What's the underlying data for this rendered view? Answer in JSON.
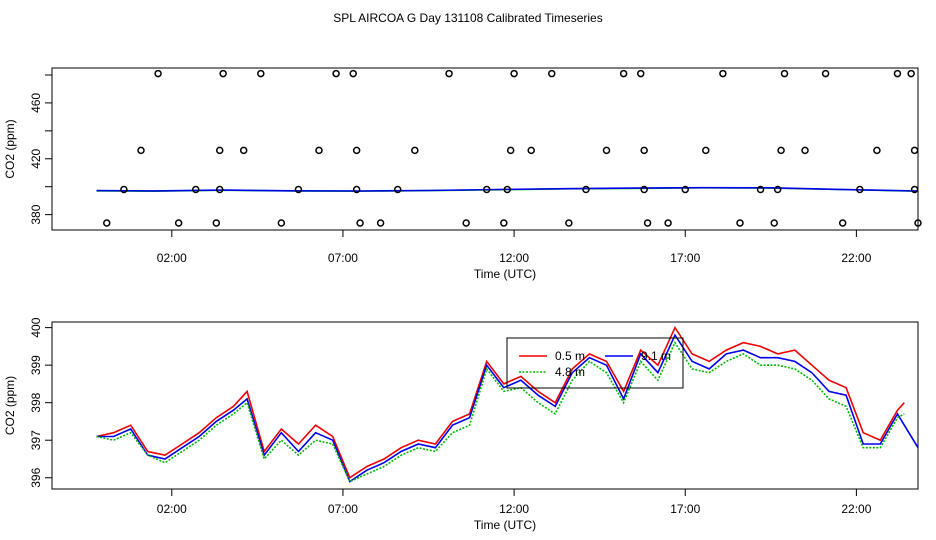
{
  "title": "SPL AIRCOA G  Day 131108  Calibrated Timeseries",
  "chart_data": [
    {
      "type": "scatter",
      "xlabel": "Time (UTC)",
      "ylabel": "CO2 (ppm)",
      "xlim": [
        -1.5,
        23.8
      ],
      "ylim": [
        369,
        485
      ],
      "x_ticks": [
        2,
        7,
        12,
        17,
        22
      ],
      "x_tick_labels": [
        "02:00",
        "07:00",
        "12:00",
        "17:00",
        "22:00"
      ],
      "y_ticks": [
        380,
        420,
        460
      ],
      "y_tick_labels": [
        "380",
        "420",
        "460"
      ],
      "points": [
        [
          0.1,
          374
        ],
        [
          0.6,
          398
        ],
        [
          1.1,
          426
        ],
        [
          1.6,
          481
        ],
        [
          2.2,
          374
        ],
        [
          2.7,
          398
        ],
        [
          3.3,
          374
        ],
        [
          3.4,
          398
        ],
        [
          3.4,
          426
        ],
        [
          3.5,
          481
        ],
        [
          4.1,
          426
        ],
        [
          4.6,
          481
        ],
        [
          5.2,
          374
        ],
        [
          5.7,
          398
        ],
        [
          6.3,
          426
        ],
        [
          6.8,
          481
        ],
        [
          7.3,
          481
        ],
        [
          7.4,
          426
        ],
        [
          7.4,
          398
        ],
        [
          7.5,
          374
        ],
        [
          8.1,
          374
        ],
        [
          8.6,
          398
        ],
        [
          9.1,
          426
        ],
        [
          10.1,
          481
        ],
        [
          10.6,
          374
        ],
        [
          11.2,
          398
        ],
        [
          11.7,
          374
        ],
        [
          11.8,
          398
        ],
        [
          11.9,
          426
        ],
        [
          12.0,
          481
        ],
        [
          12.5,
          426
        ],
        [
          13.1,
          481
        ],
        [
          13.6,
          374
        ],
        [
          14.1,
          398
        ],
        [
          14.7,
          426
        ],
        [
          15.2,
          481
        ],
        [
          15.7,
          481
        ],
        [
          15.8,
          426
        ],
        [
          15.8,
          398
        ],
        [
          15.9,
          374
        ],
        [
          16.5,
          374
        ],
        [
          17.0,
          398
        ],
        [
          17.6,
          426
        ],
        [
          18.1,
          481
        ],
        [
          18.6,
          374
        ],
        [
          19.2,
          398
        ],
        [
          19.6,
          374
        ],
        [
          19.7,
          398
        ],
        [
          19.8,
          426
        ],
        [
          19.9,
          481
        ],
        [
          20.5,
          426
        ],
        [
          21.1,
          481
        ],
        [
          21.6,
          374
        ],
        [
          22.1,
          398
        ],
        [
          22.6,
          426
        ],
        [
          23.2,
          481
        ],
        [
          23.6,
          481
        ],
        [
          23.7,
          426
        ],
        [
          23.7,
          398
        ],
        [
          23.8,
          374
        ]
      ],
      "series": [
        {
          "color": "#00cc00",
          "x": [
            -0.2,
            1.5,
            3.5,
            5.5,
            7.5,
            9.5,
            11.5,
            13.5,
            15.5,
            17.5,
            19.5,
            21.5,
            23.8
          ],
          "y": [
            397,
            396.8,
            397.5,
            397,
            396.8,
            397.2,
            397.8,
            398.5,
            398.8,
            399.2,
            399,
            398,
            396.8
          ]
        },
        {
          "color": "#0000ee",
          "x": [
            -0.2,
            1.5,
            3.5,
            5.5,
            7.5,
            9.5,
            11.5,
            13.5,
            15.5,
            17.5,
            19.5,
            21.5,
            23.8
          ],
          "y": [
            397.2,
            397,
            397.6,
            397.1,
            396.9,
            397.3,
            398,
            398.6,
            399,
            399.3,
            399.2,
            398.1,
            396.9
          ]
        }
      ]
    },
    {
      "type": "line",
      "xlabel": "Time (UTC)",
      "ylabel": "CO2 (ppm)",
      "xlim": [
        -1.5,
        23.8
      ],
      "ylim": [
        395.7,
        400.15
      ],
      "x_ticks": [
        2,
        7,
        12,
        17,
        22
      ],
      "x_tick_labels": [
        "02:00",
        "07:00",
        "12:00",
        "17:00",
        "22:00"
      ],
      "y_ticks": [
        396,
        397,
        398,
        399,
        400
      ],
      "y_tick_labels": [
        "396",
        "397",
        "398",
        "399",
        "400"
      ],
      "legend": {
        "position": "top-center",
        "entries": [
          {
            "label": "0.5 m",
            "color": "#ee0000",
            "dash": "solid"
          },
          {
            "label": "9.1 m",
            "color": "#0000ee",
            "dash": "solid"
          },
          {
            "label": "4.8 m",
            "color": "#00bb00",
            "dash": "dotted"
          }
        ]
      },
      "series": [
        {
          "name": "0.5 m",
          "color": "#ee0000",
          "x": [
            -0.2,
            0.3,
            0.8,
            1.3,
            1.8,
            2.3,
            2.8,
            3.3,
            3.8,
            4.2,
            4.7,
            5.2,
            5.7,
            6.2,
            6.7,
            7.2,
            7.7,
            8.2,
            8.7,
            9.2,
            9.7,
            10.2,
            10.7,
            11.2,
            11.7,
            12.2,
            12.7,
            13.2,
            13.7,
            14.2,
            14.7,
            15.2,
            15.7,
            16.2,
            16.7,
            17.2,
            17.7,
            18.2,
            18.7,
            19.2,
            19.7,
            20.2,
            20.7,
            21.2,
            21.7,
            22.2,
            22.7,
            23.2,
            23.4
          ],
          "y": [
            397.1,
            397.2,
            397.4,
            396.7,
            396.6,
            396.9,
            397.2,
            397.6,
            397.9,
            398.3,
            396.7,
            397.3,
            396.9,
            397.4,
            397.1,
            396.0,
            396.3,
            396.5,
            396.8,
            397.0,
            396.9,
            397.5,
            397.7,
            399.1,
            398.5,
            398.7,
            398.3,
            398.0,
            398.9,
            399.3,
            399.1,
            398.3,
            399.4,
            399.0,
            400.0,
            399.3,
            399.1,
            399.4,
            399.6,
            399.5,
            399.3,
            399.4,
            399.0,
            398.6,
            398.4,
            397.2,
            397.0,
            397.8,
            398.0
          ]
        },
        {
          "name": "9.1 m",
          "color": "#0000ee",
          "x": [
            -0.2,
            0.3,
            0.8,
            1.3,
            1.8,
            2.3,
            2.8,
            3.3,
            3.8,
            4.2,
            4.7,
            5.2,
            5.7,
            6.2,
            6.7,
            7.2,
            7.7,
            8.2,
            8.7,
            9.2,
            9.7,
            10.2,
            10.7,
            11.2,
            11.7,
            12.2,
            12.7,
            13.2,
            13.7,
            14.2,
            14.7,
            15.2,
            15.7,
            16.2,
            16.7,
            17.2,
            17.7,
            18.2,
            18.7,
            19.2,
            19.7,
            20.2,
            20.7,
            21.2,
            21.7,
            22.2,
            22.7,
            23.2,
            23.8
          ],
          "y": [
            397.1,
            397.1,
            397.3,
            396.6,
            396.5,
            396.8,
            397.1,
            397.5,
            397.8,
            398.1,
            396.6,
            397.2,
            396.7,
            397.2,
            397.0,
            395.9,
            396.2,
            396.4,
            396.7,
            396.9,
            396.8,
            397.4,
            397.6,
            399.0,
            398.4,
            398.6,
            398.2,
            397.9,
            398.8,
            399.2,
            399.0,
            398.1,
            399.3,
            398.8,
            399.8,
            399.1,
            398.9,
            399.3,
            399.4,
            399.2,
            399.2,
            399.1,
            398.8,
            398.3,
            398.2,
            396.9,
            396.9,
            397.7,
            396.8
          ]
        },
        {
          "name": "4.8 m",
          "color": "#00bb00",
          "x": [
            -0.2,
            0.3,
            0.8,
            1.3,
            1.8,
            2.3,
            2.8,
            3.3,
            3.8,
            4.2,
            4.7,
            5.2,
            5.7,
            6.2,
            6.7,
            7.2,
            7.7,
            8.2,
            8.7,
            9.2,
            9.7,
            10.2,
            10.7,
            11.2,
            11.7,
            12.2,
            12.7,
            13.2,
            13.7,
            14.2,
            14.7,
            15.2,
            15.7,
            16.2,
            16.7,
            17.2,
            17.7,
            18.2,
            18.7,
            19.2,
            19.7,
            20.2,
            20.7,
            21.2,
            21.7,
            22.2,
            22.7,
            23.2,
            23.4
          ],
          "y": [
            397.1,
            397.0,
            397.2,
            396.6,
            396.4,
            396.7,
            397.0,
            397.4,
            397.7,
            398.0,
            396.5,
            397.0,
            396.6,
            397.0,
            396.9,
            395.9,
            396.1,
            396.3,
            396.6,
            396.8,
            396.7,
            397.2,
            397.4,
            398.9,
            398.3,
            398.4,
            398.0,
            397.7,
            398.6,
            399.1,
            398.8,
            398.0,
            399.1,
            398.6,
            399.6,
            398.9,
            398.8,
            399.1,
            399.3,
            399.0,
            399.0,
            398.9,
            398.6,
            398.1,
            397.9,
            396.8,
            396.8,
            397.6,
            397.7
          ]
        }
      ]
    }
  ]
}
